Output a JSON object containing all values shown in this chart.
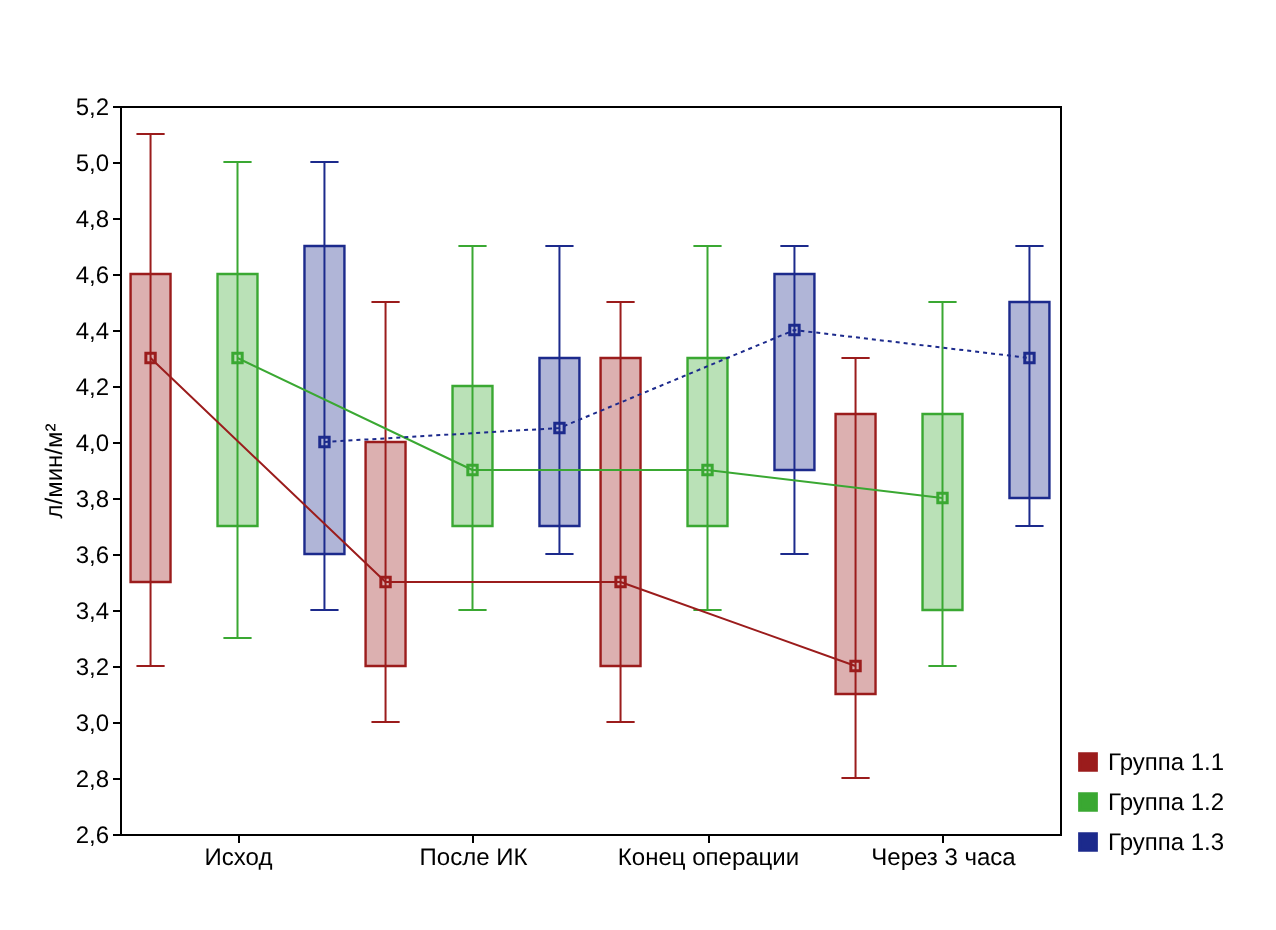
{
  "chart_data": {
    "type": "box",
    "ylabel": "л/мин/м²",
    "categories": [
      "Исход",
      "После ИК",
      "Конец операции",
      "Через 3 часа"
    ],
    "ylim": [
      2.6,
      5.2
    ],
    "yticks": [
      {
        "value": 2.6,
        "label": "2,6"
      },
      {
        "value": 2.8,
        "label": "2,8"
      },
      {
        "value": 3.0,
        "label": "3,0"
      },
      {
        "value": 3.2,
        "label": "3,2"
      },
      {
        "value": 3.4,
        "label": "3,4"
      },
      {
        "value": 3.6,
        "label": "3,6"
      },
      {
        "value": 3.8,
        "label": "3,8"
      },
      {
        "value": 4.0,
        "label": "4,0"
      },
      {
        "value": 4.2,
        "label": "4,2"
      },
      {
        "value": 4.4,
        "label": "4,4"
      },
      {
        "value": 4.6,
        "label": "4,6"
      },
      {
        "value": 4.8,
        "label": "4,8"
      },
      {
        "value": 5.0,
        "label": "5,0"
      },
      {
        "value": 5.2,
        "label": "5,2"
      }
    ],
    "grid": false,
    "legend": "bottom right",
    "marker": "square",
    "series": [
      {
        "name": "Группа 1.1",
        "color": "#9b1c1c",
        "boxes": [
          {
            "low": 3.2,
            "q1": 3.5,
            "median": 4.3,
            "q3": 4.6,
            "high": 5.1
          },
          {
            "low": 3.0,
            "q1": 3.2,
            "median": 3.5,
            "q3": 4.0,
            "high": 4.5
          },
          {
            "low": 3.0,
            "q1": 3.2,
            "median": 3.5,
            "q3": 4.3,
            "high": 4.5
          },
          {
            "low": 2.8,
            "q1": 3.1,
            "median": 3.2,
            "q3": 4.1,
            "high": 4.3
          }
        ]
      },
      {
        "name": "Группа 1.2",
        "color": "#3aa832",
        "boxes": [
          {
            "low": 3.3,
            "q1": 3.7,
            "median": 4.3,
            "q3": 4.6,
            "high": 5.0
          },
          {
            "low": 3.4,
            "q1": 3.7,
            "median": 3.9,
            "q3": 4.2,
            "high": 4.7
          },
          {
            "low": 3.4,
            "q1": 3.7,
            "median": 3.9,
            "q3": 4.3,
            "high": 4.7
          },
          {
            "low": 3.2,
            "q1": 3.4,
            "median": 3.8,
            "q3": 4.1,
            "high": 4.5
          }
        ]
      },
      {
        "name": "Группа 1.3",
        "color": "#1c2a8c",
        "boxes": [
          {
            "low": 3.4,
            "q1": 3.6,
            "median": 4.0,
            "q3": 4.7,
            "high": 5.0
          },
          {
            "low": 3.6,
            "q1": 3.7,
            "median": 4.05,
            "q3": 4.3,
            "high": 4.7
          },
          {
            "low": 3.6,
            "q1": 3.9,
            "median": 4.4,
            "q3": 4.6,
            "high": 4.7
          },
          {
            "low": 3.7,
            "q1": 3.8,
            "median": 4.3,
            "q3": 4.5,
            "high": 4.7
          }
        ]
      },
      {
        "type": "line",
        "color": "#9b1c1c",
        "line_style": "solid",
        "marker": "none",
        "values": [
          4.3,
          3.5,
          3.5,
          3.2
        ]
      },
      {
        "type": "line",
        "color": "#3aa832",
        "line_style": "solid",
        "marker": "none",
        "values": [
          4.3,
          3.9,
          3.9,
          3.8
        ]
      },
      {
        "type": "line",
        "color": "#1c2a8c",
        "line_style": "dotted",
        "marker": "none",
        "values": [
          4.0,
          4.05,
          4.4,
          4.3
        ]
      }
    ]
  }
}
